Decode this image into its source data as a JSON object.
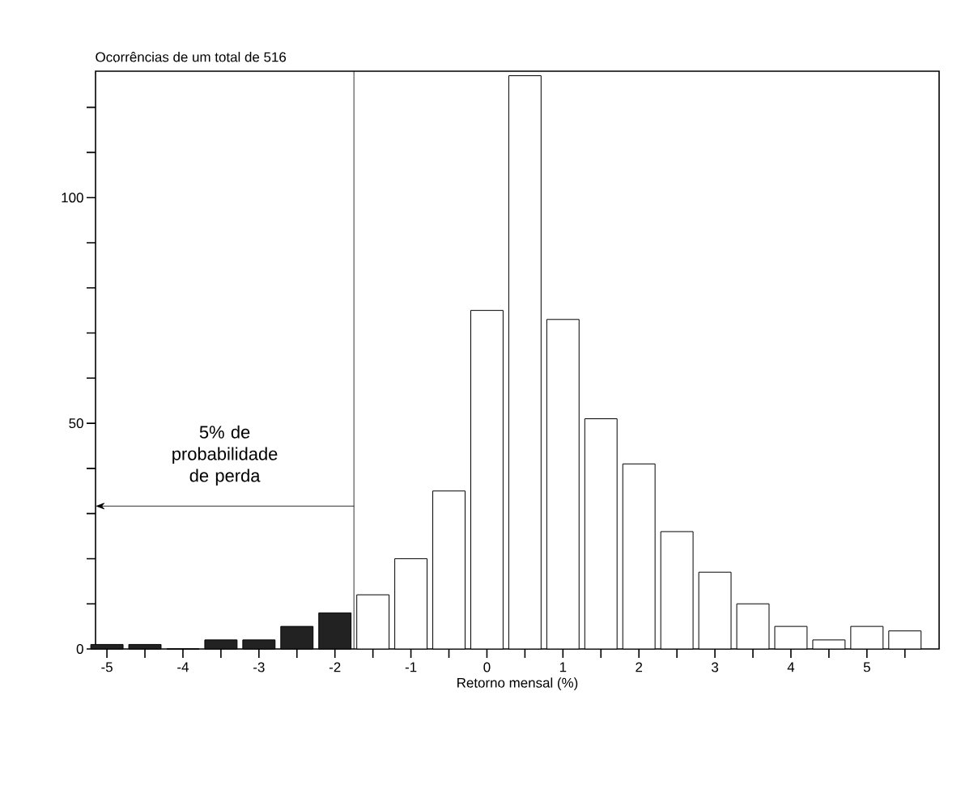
{
  "chart_data": {
    "type": "bar",
    "title": "Ocorrências de um total de 516",
    "xlabel": "Retorno mensal (%)",
    "x": [
      -5,
      -4.5,
      -4,
      -3.5,
      -3,
      -2.5,
      -2,
      -1.5,
      -1,
      -0.5,
      0,
      0.5,
      1,
      1.5,
      2,
      2.5,
      3,
      3.5,
      4,
      4.5,
      5,
      5.5
    ],
    "values": [
      1,
      1,
      0,
      2,
      2,
      5,
      8,
      12,
      20,
      35,
      75,
      127,
      73,
      51,
      41,
      26,
      17,
      10,
      5,
      2,
      5,
      4
    ],
    "colors": [
      "#222222",
      "#222222",
      "#222222",
      "#222222",
      "#222222",
      "#222222",
      "#222222",
      "#ffffff",
      "#ffffff",
      "#ffffff",
      "#ffffff",
      "#ffffff",
      "#ffffff",
      "#ffffff",
      "#ffffff",
      "#ffffff",
      "#ffffff",
      "#ffffff",
      "#ffffff",
      "#ffffff",
      "#ffffff",
      "#ffffff"
    ],
    "xlim": [
      -5.15,
      5.95
    ],
    "ylim": [
      0,
      128
    ],
    "xticks": [
      -5,
      {
        "value": -4.5,
        "label": null
      },
      -4,
      {
        "value": -3.5,
        "label": null
      },
      -3,
      {
        "value": -2.5,
        "label": null
      },
      -2,
      {
        "value": -1.5,
        "label": null
      },
      -1,
      {
        "value": -0.5,
        "label": null
      },
      0,
      {
        "value": 0.5,
        "label": null
      },
      1,
      {
        "value": 1.5,
        "label": null
      },
      2,
      {
        "value": 2.5,
        "label": null
      },
      3,
      {
        "value": 3.5,
        "label": null
      },
      4,
      {
        "value": 4.5,
        "label": null
      },
      5,
      {
        "value": 5.5,
        "label": null
      }
    ],
    "yticks": [
      0,
      {
        "value": 10,
        "label": null
      },
      {
        "value": 20,
        "label": null
      },
      {
        "value": 30,
        "label": null
      },
      {
        "value": 40,
        "label": null
      },
      50,
      {
        "value": 60,
        "label": null
      },
      {
        "value": 70,
        "label": null
      },
      {
        "value": 80,
        "label": null
      },
      {
        "value": 90,
        "label": null
      },
      100,
      {
        "value": 110,
        "label": null
      },
      {
        "value": 120,
        "label": null
      }
    ],
    "ref_lines": [
      {
        "axis": "x",
        "value": -1.75,
        "color": "#000000"
      }
    ],
    "annotations": [
      "5% de probabilidade de perda"
    ]
  }
}
